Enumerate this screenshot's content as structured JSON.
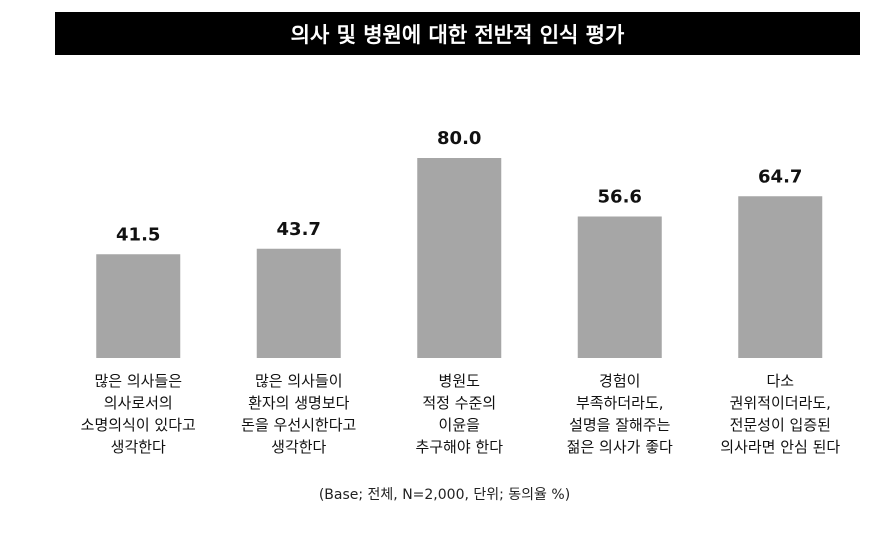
{
  "chart_data": {
    "type": "bar",
    "title": "의사 및 병원에 대한 전반적 인식 평가",
    "categories": [
      "많은 의사들은\n의사로서의\n소명의식이 있다고\n생각한다",
      "많은 의사들이\n환자의 생명보다\n돈을 우선시한다고\n생각한다",
      "병원도\n적정 수준의\n이윤을\n추구해야 한다",
      "경험이\n부족하더라도,\n설명을 잘해주는\n젊은 의사가 좋다",
      "다소\n권위적이더라도,\n전문성이 입증된\n의사라면 안심 된다"
    ],
    "values": [
      41.5,
      43.7,
      80.0,
      56.6,
      64.7
    ],
    "value_labels": [
      "41.5",
      "43.7",
      "80.0",
      "56.6",
      "64.7"
    ],
    "color": "#a6a6a6",
    "note": "(Base; 전체, N=2,000, 단위; 동의율 %)"
  }
}
